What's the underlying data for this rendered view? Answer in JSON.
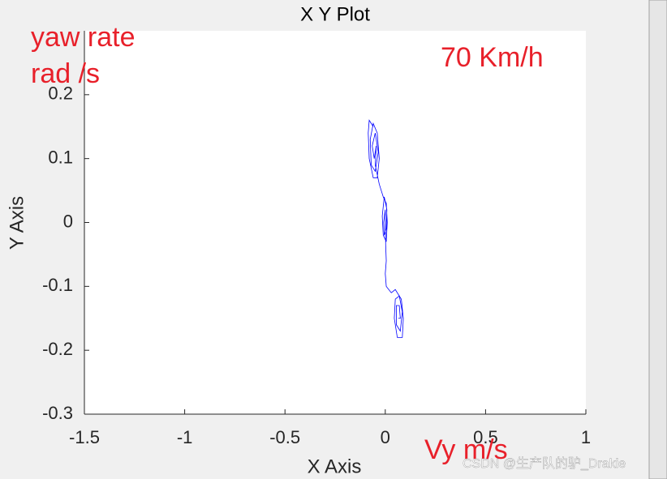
{
  "chart_data": {
    "type": "line",
    "title": "X Y Plot",
    "x_label": "X Axis",
    "y_label": "Y Axis",
    "annotations": [
      "yaw rate",
      "rad /s",
      "70 Km/h",
      "Vy m/s"
    ],
    "watermark": "CSDN @生产队的驴_Drakie",
    "xlim": [
      -1.5,
      1
    ],
    "xticks": [
      -1.5,
      -1,
      -0.5,
      0,
      0.5,
      1
    ],
    "ylim": [
      -0.3,
      0.3
    ],
    "yticks": [
      -0.3,
      -0.2,
      -0.1,
      0,
      0.1,
      0.2
    ],
    "series": [
      {
        "color": "#0000ff",
        "x": [
          -0.06,
          -0.08,
          -0.085,
          -0.08,
          -0.06,
          -0.04,
          -0.03,
          -0.04,
          -0.06,
          -0.075,
          -0.07,
          -0.05,
          -0.035,
          -0.05,
          -0.065,
          -0.055,
          -0.045,
          -0.05,
          -0.03,
          -0.01,
          0.005,
          0.01,
          0.005,
          -0.01,
          -0.015,
          -0.005,
          0.008,
          0.005,
          -0.005,
          -0.008,
          0.0,
          0.002,
          0.005,
          0.0,
          0.005,
          0.03,
          0.05,
          0.08,
          0.09,
          0.085,
          0.06,
          0.045,
          0.05,
          0.07,
          0.085,
          0.075,
          0.055,
          0.055,
          0.07,
          0.075,
          0.065
        ],
        "y": [
          0.15,
          0.16,
          0.14,
          0.1,
          0.07,
          0.07,
          0.1,
          0.14,
          0.155,
          0.13,
          0.09,
          0.08,
          0.11,
          0.14,
          0.12,
          0.1,
          0.12,
          0.09,
          0.06,
          0.04,
          0.03,
          0.0,
          -0.03,
          -0.02,
          0.01,
          0.04,
          0.02,
          -0.01,
          -0.02,
          0.0,
          0.02,
          -0.035,
          -0.06,
          -0.08,
          -0.1,
          -0.11,
          -0.105,
          -0.12,
          -0.15,
          -0.18,
          -0.18,
          -0.15,
          -0.12,
          -0.115,
          -0.14,
          -0.17,
          -0.16,
          -0.13,
          -0.13,
          -0.15,
          -0.15
        ]
      }
    ]
  }
}
